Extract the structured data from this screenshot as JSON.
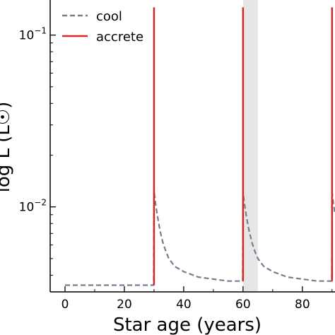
{
  "chart_data": {
    "type": "line",
    "xlabel": "Star age (years)",
    "ylabel": "log L (L☉)",
    "xlim": [
      -5,
      91
    ],
    "ylim": [
      0.0032,
      0.16
    ],
    "ylog": true,
    "x_ticks": [
      0,
      20,
      40,
      60,
      80
    ],
    "y_ticks": [
      {
        "value": 0.01,
        "base": "10",
        "exp": "−2"
      },
      {
        "value": 0.1,
        "base": "10",
        "exp": "−1"
      }
    ],
    "legend_position": "top-left",
    "shaded_band": {
      "x_from": 60,
      "x_to": 65,
      "color": "#e6e6e6"
    },
    "series": [
      {
        "name": "cool",
        "style": "dashed",
        "color": "#708090",
        "x": [
          0,
          10,
          20,
          29.9,
          30,
          30.3,
          30.6,
          31,
          31.5,
          32,
          33,
          34,
          35,
          37,
          40,
          45,
          50,
          55,
          59.9,
          60,
          60.3,
          60.6,
          61,
          61.5,
          62,
          63,
          64,
          65,
          67,
          70,
          75,
          80,
          85,
          89.9,
          90,
          90.3,
          90.6,
          91
        ],
        "values": [
          0.0035,
          0.0035,
          0.0035,
          0.0035,
          0.0125,
          0.0112,
          0.0102,
          0.0092,
          0.0082,
          0.0073,
          0.0062,
          0.0055,
          0.005,
          0.0045,
          0.0042,
          0.0039,
          0.0038,
          0.0037,
          0.0037,
          0.0122,
          0.011,
          0.0101,
          0.0091,
          0.0081,
          0.0073,
          0.0062,
          0.0055,
          0.005,
          0.0045,
          0.0042,
          0.0039,
          0.0038,
          0.0037,
          0.0037,
          0.0122,
          0.011,
          0.0101,
          0.0091
        ]
      },
      {
        "name": "accrete",
        "style": "solid",
        "color": "#d62728",
        "spikes": [
          {
            "x": 30,
            "from": 0.0035,
            "to": 0.145
          },
          {
            "x": 60,
            "from": 0.0037,
            "to": 0.145
          },
          {
            "x": 90,
            "from": 0.0037,
            "to": 0.145
          }
        ]
      }
    ]
  }
}
